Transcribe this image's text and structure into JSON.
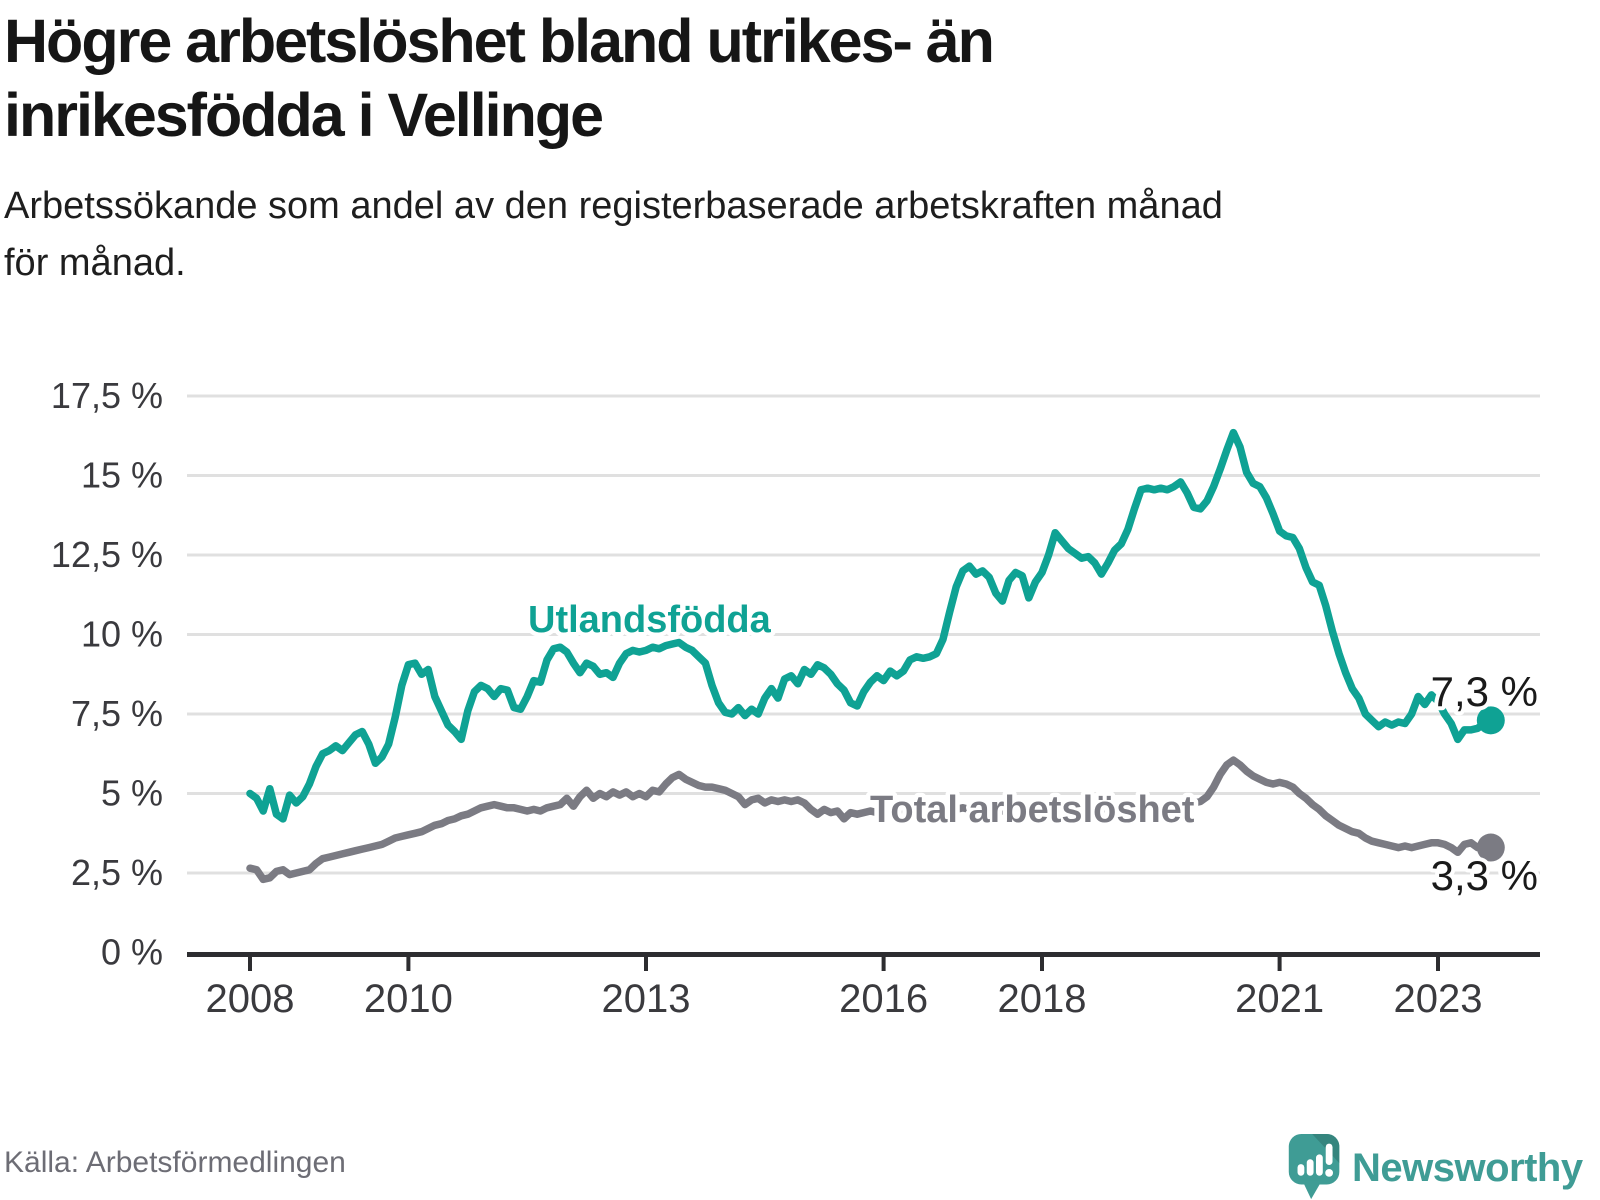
{
  "header": {
    "title_line1": "Högre arbetslöshet bland utrikes- än",
    "title_line2": "inrikesfödda i Vellinge",
    "subtitle_line1": "Arbetssökande som andel av den registerbaserade arbetskraften månad",
    "subtitle_line2": "för månad."
  },
  "footer": {
    "source": "Källa: Arbetsförmedlingen",
    "logo_text": "Newsworthy"
  },
  "colors": {
    "teal": "#0FA294",
    "gray": "#7B7B83",
    "end_label_text": "#1A1A1A",
    "grid": "#E0E0E0",
    "axis": "#2D2D30",
    "axis_label": "#3A3A3E",
    "logo_teal": "#3F9C95",
    "logo_fold": "#35857E"
  },
  "chart_data": {
    "type": "line",
    "unit": "%",
    "x_start": {
      "year": 2008,
      "month": 1
    },
    "x_end": {
      "year": 2023,
      "month": 9
    },
    "points_per_year": 12,
    "ylim": [
      0,
      17.5
    ],
    "grid": true,
    "yticks": [
      {
        "label": "0 %",
        "value": 0
      },
      {
        "label": "2,5 %",
        "value": 2.5
      },
      {
        "label": "5 %",
        "value": 5
      },
      {
        "label": "7,5 %",
        "value": 7.5
      },
      {
        "label": "10 %",
        "value": 10
      },
      {
        "label": "12,5 %",
        "value": 12.5
      },
      {
        "label": "15 %",
        "value": 15
      },
      {
        "label": "17,5 %",
        "value": 17.5
      }
    ],
    "xticks": [
      {
        "label": "2008",
        "year": 2008
      },
      {
        "label": "2010",
        "year": 2010
      },
      {
        "label": "2013",
        "year": 2013
      },
      {
        "label": "2016",
        "year": 2016
      },
      {
        "label": "2018",
        "year": 2018
      },
      {
        "label": "2021",
        "year": 2021
      },
      {
        "label": "2023",
        "year": 2023
      }
    ],
    "series": [
      {
        "name": "total",
        "label": "Total arbetslöshet",
        "color": "#7B7B83",
        "end_label": "3,3 %",
        "end_value": 3.3,
        "values": [
          2.65,
          2.6,
          2.3,
          2.35,
          2.55,
          2.6,
          2.45,
          2.5,
          2.55,
          2.6,
          2.8,
          2.95,
          3.0,
          3.05,
          3.1,
          3.15,
          3.2,
          3.25,
          3.3,
          3.35,
          3.4,
          3.5,
          3.6,
          3.65,
          3.7,
          3.75,
          3.8,
          3.9,
          4.0,
          4.05,
          4.15,
          4.2,
          4.3,
          4.35,
          4.45,
          4.55,
          4.6,
          4.65,
          4.6,
          4.55,
          4.55,
          4.5,
          4.45,
          4.5,
          4.45,
          4.55,
          4.6,
          4.65,
          4.85,
          4.6,
          4.9,
          5.1,
          4.85,
          5.0,
          4.9,
          5.05,
          4.95,
          5.05,
          4.9,
          5.0,
          4.9,
          5.1,
          5.05,
          5.3,
          5.5,
          5.6,
          5.45,
          5.35,
          5.25,
          5.2,
          5.2,
          5.15,
          5.1,
          5.0,
          4.9,
          4.65,
          4.8,
          4.85,
          4.7,
          4.8,
          4.75,
          4.8,
          4.75,
          4.8,
          4.7,
          4.5,
          4.35,
          4.5,
          4.4,
          4.45,
          4.2,
          4.4,
          4.35,
          4.4,
          4.45,
          4.4,
          4.45,
          4.4,
          4.45,
          4.4,
          4.45,
          4.4,
          4.35,
          4.4,
          4.45,
          4.5,
          4.55,
          4.5,
          4.55,
          4.5,
          4.45,
          4.5,
          4.55,
          4.5,
          4.45,
          4.5,
          4.55,
          4.5,
          4.45,
          4.5,
          4.55,
          4.6,
          4.65,
          4.6,
          4.55,
          4.6,
          4.55,
          4.5,
          4.55,
          4.5,
          4.55,
          4.6,
          4.5,
          4.55,
          4.6,
          4.55,
          4.5,
          4.45,
          4.5,
          4.45,
          4.5,
          4.55,
          4.6,
          4.7,
          4.75,
          4.9,
          5.2,
          5.6,
          5.9,
          6.05,
          5.9,
          5.7,
          5.55,
          5.45,
          5.35,
          5.3,
          5.35,
          5.3,
          5.2,
          5.0,
          4.85,
          4.65,
          4.5,
          4.3,
          4.15,
          4.0,
          3.9,
          3.8,
          3.75,
          3.6,
          3.5,
          3.45,
          3.4,
          3.35,
          3.3,
          3.35,
          3.3,
          3.35,
          3.4,
          3.45,
          3.45,
          3.4,
          3.3,
          3.15,
          3.4,
          3.45,
          3.3,
          3.25,
          3.3
        ]
      },
      {
        "name": "utlandsfodda",
        "label": "Utlandsfödda",
        "color": "#0FA294",
        "end_label": "7,3 %",
        "end_value": 7.3,
        "values": [
          5.0,
          4.85,
          4.45,
          5.15,
          4.35,
          4.2,
          4.95,
          4.7,
          4.9,
          5.3,
          5.85,
          6.25,
          6.35,
          6.5,
          6.35,
          6.6,
          6.85,
          6.95,
          6.55,
          5.95,
          6.15,
          6.55,
          7.4,
          8.4,
          9.05,
          9.1,
          8.75,
          8.9,
          8.05,
          7.6,
          7.15,
          6.95,
          6.7,
          7.6,
          8.2,
          8.4,
          8.3,
          8.05,
          8.3,
          8.25,
          7.7,
          7.65,
          8.05,
          8.55,
          8.5,
          9.2,
          9.55,
          9.6,
          9.45,
          9.1,
          8.8,
          9.1,
          9.0,
          8.75,
          8.8,
          8.65,
          9.1,
          9.4,
          9.5,
          9.45,
          9.5,
          9.6,
          9.55,
          9.65,
          9.7,
          9.75,
          9.6,
          9.5,
          9.3,
          9.1,
          8.4,
          7.85,
          7.55,
          7.5,
          7.7,
          7.45,
          7.65,
          7.5,
          8.0,
          8.3,
          8.0,
          8.6,
          8.7,
          8.45,
          8.9,
          8.75,
          9.05,
          8.95,
          8.75,
          8.45,
          8.25,
          7.85,
          7.75,
          8.2,
          8.5,
          8.7,
          8.55,
          8.85,
          8.7,
          8.85,
          9.2,
          9.3,
          9.25,
          9.3,
          9.4,
          9.85,
          10.7,
          11.5,
          12.0,
          12.15,
          11.9,
          12.0,
          11.8,
          11.3,
          11.05,
          11.7,
          11.95,
          11.85,
          11.15,
          11.65,
          11.95,
          12.5,
          13.2,
          12.95,
          12.7,
          12.55,
          12.4,
          12.45,
          12.25,
          11.9,
          12.25,
          12.65,
          12.85,
          13.3,
          13.95,
          14.55,
          14.6,
          14.55,
          14.6,
          14.55,
          14.65,
          14.8,
          14.45,
          14.0,
          13.95,
          14.2,
          14.65,
          15.2,
          15.8,
          16.35,
          15.9,
          15.1,
          14.75,
          14.65,
          14.3,
          13.8,
          13.25,
          13.1,
          13.05,
          12.7,
          12.1,
          11.65,
          11.55,
          10.9,
          10.1,
          9.4,
          8.8,
          8.3,
          8.0,
          7.5,
          7.3,
          7.1,
          7.25,
          7.15,
          7.25,
          7.2,
          7.5,
          8.05,
          7.8,
          8.1,
          7.9,
          7.5,
          7.2,
          6.7,
          7.0,
          7.0,
          7.05,
          7.2,
          7.3
        ]
      }
    ]
  }
}
